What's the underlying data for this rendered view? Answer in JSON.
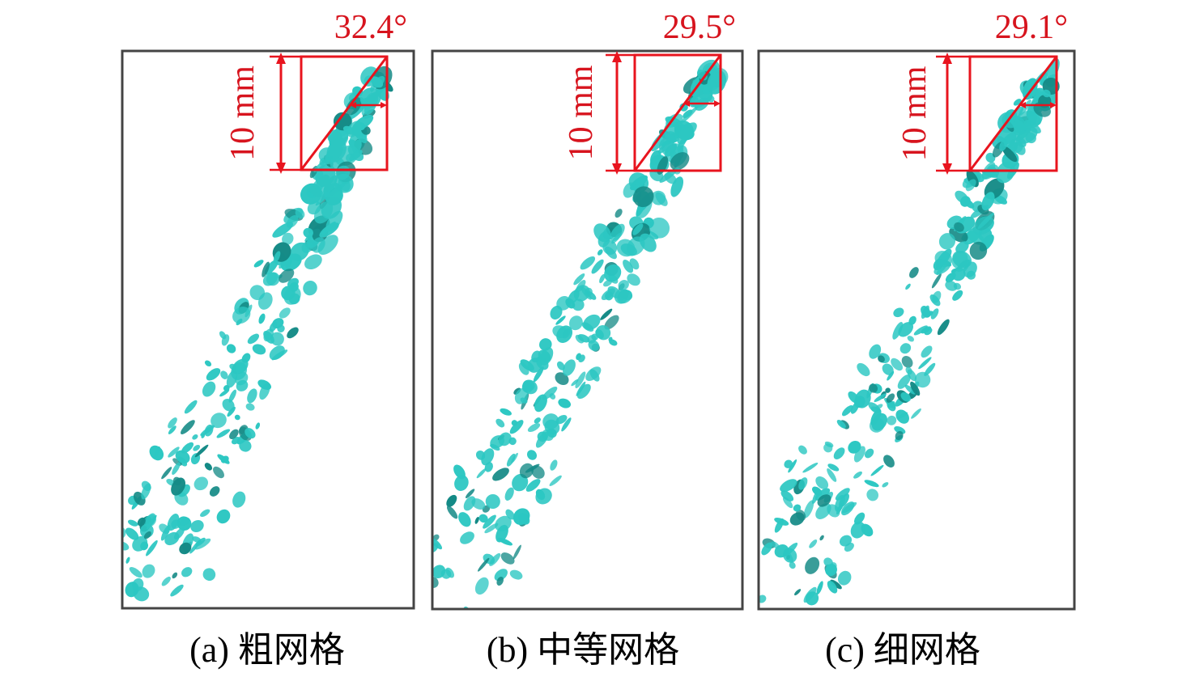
{
  "panels": [
    {
      "angle": "32.4°",
      "scale_label": "10 mm",
      "caption": "(a) 粗网格"
    },
    {
      "angle": "29.5°",
      "scale_label": "10 mm",
      "caption": "(b) 中等网格"
    },
    {
      "angle": "29.1°",
      "scale_label": "10 mm",
      "caption": "(c) 细网格"
    }
  ]
}
